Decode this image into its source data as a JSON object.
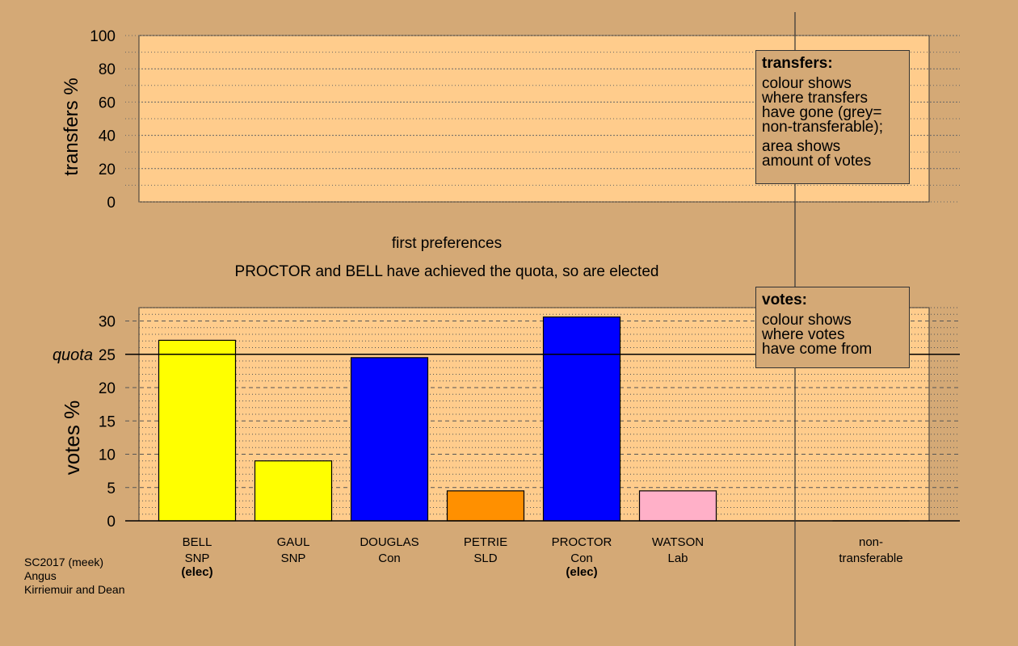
{
  "chart_data": [
    {
      "type": "area",
      "ylabel": "transfers %",
      "ylim": [
        0,
        100
      ],
      "yticks": [
        0,
        20,
        40,
        60,
        80,
        100
      ],
      "grid": "dotted",
      "series": []
    },
    {
      "type": "bar",
      "ylabel": "votes %",
      "ylim": [
        0,
        32
      ],
      "yticks": [
        0,
        5,
        10,
        15,
        20,
        25,
        30
      ],
      "grid": "dotted",
      "quota": 25,
      "quota_label": "quota",
      "categories": [
        "BELL SNP (elec)",
        "GAUL SNP",
        "DOUGLAS Con",
        "PETRIE SLD",
        "PROCTOR Con (elec)",
        "WATSON Lab",
        "non-transferable"
      ],
      "values": [
        27.1,
        9.0,
        24.5,
        4.5,
        30.6,
        4.5,
        0
      ],
      "colors": [
        "#ffff00",
        "#ffff00",
        "#0000ff",
        "#ff9000",
        "#0000ff",
        "#ffb0c8",
        "#aaaaaa"
      ]
    }
  ],
  "candidates": [
    {
      "name": "BELL",
      "party": "SNP",
      "status": "(elec)"
    },
    {
      "name": "GAUL",
      "party": "SNP",
      "status": ""
    },
    {
      "name": "DOUGLAS",
      "party": "Con",
      "status": ""
    },
    {
      "name": "PETRIE",
      "party": "SLD",
      "status": ""
    },
    {
      "name": "PROCTOR",
      "party": "Con",
      "status": "(elec)"
    },
    {
      "name": "WATSON",
      "party": "Lab",
      "status": ""
    }
  ],
  "nontransferable_label": [
    "non-",
    "transferable"
  ],
  "stage_title": "first preferences",
  "stage_note": "PROCTOR and BELL have achieved the quota, so are elected",
  "top_legend": {
    "title": "transfers:",
    "line1": "colour shows",
    "line2": "where transfers",
    "line3": "have gone (grey=",
    "line4": "non-transferable);",
    "line5": "area shows",
    "line6": "amount of votes"
  },
  "bottom_legend": {
    "title": "votes:",
    "line1": "colour shows",
    "line2": "where votes",
    "line3": "have come from"
  },
  "credit": {
    "line1": "SC2017 (meek)",
    "line2": "Angus",
    "line3": "Kirriemuir and Dean"
  },
  "colors": {
    "background": "#d4a976",
    "panel": "#ffcc8c"
  }
}
